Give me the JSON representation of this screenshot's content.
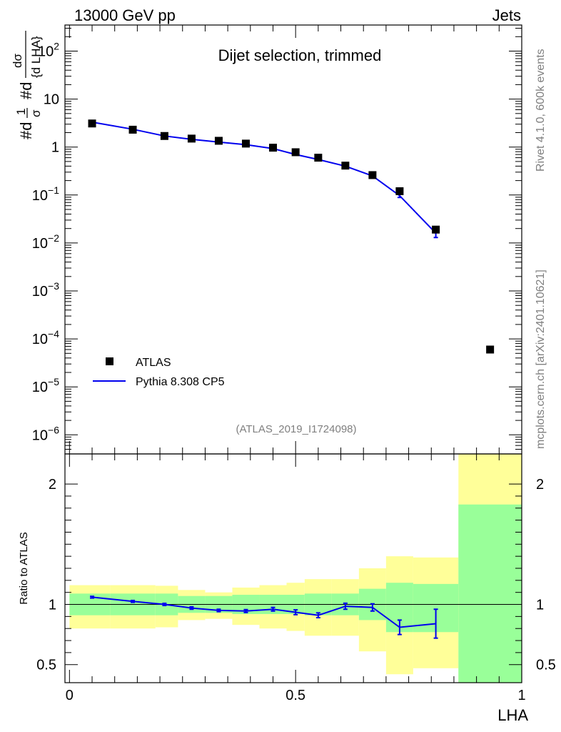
{
  "header": {
    "left": "13000 GeV pp",
    "right": "Jets"
  },
  "side_text": {
    "rivet": "Rivet 4.1.0,  600k events",
    "mcplots": "mcplots.cern.ch [arXiv:2401.10621]"
  },
  "colors": {
    "mc": "#0000ee",
    "band_inner": "#99ff99",
    "band_outer": "#ffff99",
    "data": "#000000"
  },
  "chart_data": [
    {
      "type": "scatter",
      "title": "Dijet selection, trimmed",
      "analysis": "(ATLAS_2019_I1724098)",
      "ylabel": {
        "prefix": "#d",
        "frac_num": "1",
        "frac_den": "σ",
        "mid": "#d",
        "top": "dσ",
        "bottom": "{d LHA}"
      },
      "yscale": "log",
      "ylim": [
        4e-07,
        350
      ],
      "xlim": [
        -0.01,
        1.0
      ],
      "yticks": [
        {
          "v": 1e-06,
          "base": "10",
          "exp": "−6"
        },
        {
          "v": 1e-05,
          "base": "10",
          "exp": "−5"
        },
        {
          "v": 0.0001,
          "base": "10",
          "exp": "−4"
        },
        {
          "v": 0.001,
          "base": "10",
          "exp": "−3"
        },
        {
          "v": 0.01,
          "base": "10",
          "exp": "−2"
        },
        {
          "v": 0.1,
          "base": "10",
          "exp": "−1"
        },
        {
          "v": 1,
          "base": "1",
          "exp": ""
        },
        {
          "v": 10,
          "base": "10",
          "exp": ""
        },
        {
          "v": 100,
          "base": "10",
          "exp": "2"
        }
      ],
      "legend": [
        {
          "label": "ATLAS",
          "style": "marker"
        },
        {
          "label": "Pythia 8.308 CP5",
          "style": "line"
        }
      ],
      "legend_position": "lower-left",
      "data_points": {
        "name": "ATLAS",
        "x": [
          0.05,
          0.14,
          0.21,
          0.27,
          0.33,
          0.39,
          0.45,
          0.5,
          0.55,
          0.61,
          0.67,
          0.73,
          0.81,
          0.93
        ],
        "y": [
          3.1,
          2.3,
          1.7,
          1.5,
          1.35,
          1.18,
          0.97,
          0.78,
          0.6,
          0.41,
          0.26,
          0.12,
          0.019,
          6e-05
        ]
      },
      "mc_series": {
        "name": "Pythia 8.308 CP5",
        "x": [
          0.05,
          0.14,
          0.21,
          0.27,
          0.33,
          0.39,
          0.45,
          0.5,
          0.55,
          0.61,
          0.67,
          0.73,
          0.81
        ],
        "y": [
          3.3,
          2.35,
          1.7,
          1.45,
          1.27,
          1.12,
          0.93,
          0.7,
          0.55,
          0.4,
          0.25,
          0.097,
          0.016
        ],
        "yerr": [
          0,
          0,
          0,
          0,
          0,
          0,
          0,
          0,
          0,
          0,
          0,
          0.008,
          0.003
        ]
      }
    },
    {
      "type": "line",
      "ylabel": "Ratio to ATLAS",
      "xlabel": "LHA",
      "ylim": [
        0.35,
        2.25
      ],
      "xlim": [
        -0.01,
        1.0
      ],
      "yticks": [
        "0.5",
        "1",
        "2"
      ],
      "xticks": [
        "0",
        "0.5",
        "1"
      ],
      "reference_line": 1,
      "bands": [
        {
          "x0": 0.0,
          "x1": 0.09,
          "in_lo": 0.91,
          "in_hi": 1.09,
          "out_lo": 0.8,
          "out_hi": 1.16
        },
        {
          "x0": 0.09,
          "x1": 0.19,
          "in_lo": 0.91,
          "in_hi": 1.09,
          "out_lo": 0.8,
          "out_hi": 1.16
        },
        {
          "x0": 0.19,
          "x1": 0.24,
          "in_lo": 0.91,
          "in_hi": 1.09,
          "out_lo": 0.81,
          "out_hi": 1.155
        },
        {
          "x0": 0.24,
          "x1": 0.3,
          "in_lo": 0.93,
          "in_hi": 1.07,
          "out_lo": 0.87,
          "out_hi": 1.12
        },
        {
          "x0": 0.3,
          "x1": 0.36,
          "in_lo": 0.93,
          "in_hi": 1.07,
          "out_lo": 0.88,
          "out_hi": 1.1
        },
        {
          "x0": 0.36,
          "x1": 0.42,
          "in_lo": 0.92,
          "in_hi": 1.08,
          "out_lo": 0.83,
          "out_hi": 1.14
        },
        {
          "x0": 0.42,
          "x1": 0.48,
          "in_lo": 0.92,
          "in_hi": 1.08,
          "out_lo": 0.8,
          "out_hi": 1.16
        },
        {
          "x0": 0.48,
          "x1": 0.52,
          "in_lo": 0.92,
          "in_hi": 1.08,
          "out_lo": 0.78,
          "out_hi": 1.18
        },
        {
          "x0": 0.52,
          "x1": 0.58,
          "in_lo": 0.91,
          "in_hi": 1.09,
          "out_lo": 0.74,
          "out_hi": 1.21
        },
        {
          "x0": 0.58,
          "x1": 0.64,
          "in_lo": 0.91,
          "in_hi": 1.09,
          "out_lo": 0.74,
          "out_hi": 1.21
        },
        {
          "x0": 0.64,
          "x1": 0.7,
          "in_lo": 0.87,
          "in_hi": 1.13,
          "out_lo": 0.61,
          "out_hi": 1.3
        },
        {
          "x0": 0.7,
          "x1": 0.76,
          "in_lo": 0.77,
          "in_hi": 1.18,
          "out_lo": 0.42,
          "out_hi": 1.4
        },
        {
          "x0": 0.76,
          "x1": 0.86,
          "in_lo": 0.77,
          "in_hi": 1.17,
          "out_lo": 0.47,
          "out_hi": 1.39
        },
        {
          "x0": 0.86,
          "x1": 1.0,
          "in_lo": 0.35,
          "in_hi": 1.83,
          "out_lo": 0.35,
          "out_hi": 2.25
        }
      ],
      "ratio_series": {
        "name": "Pythia 8.308 CP5",
        "x": [
          0.05,
          0.14,
          0.21,
          0.27,
          0.33,
          0.39,
          0.45,
          0.5,
          0.55,
          0.61,
          0.67,
          0.73,
          0.81
        ],
        "y": [
          1.06,
          1.025,
          1.0,
          0.97,
          0.95,
          0.945,
          0.96,
          0.935,
          0.91,
          0.985,
          0.975,
          0.81,
          0.84
        ],
        "yerr": [
          0.007,
          0.008,
          0.009,
          0.01,
          0.01,
          0.012,
          0.015,
          0.02,
          0.02,
          0.025,
          0.03,
          0.06,
          0.12
        ]
      }
    }
  ]
}
